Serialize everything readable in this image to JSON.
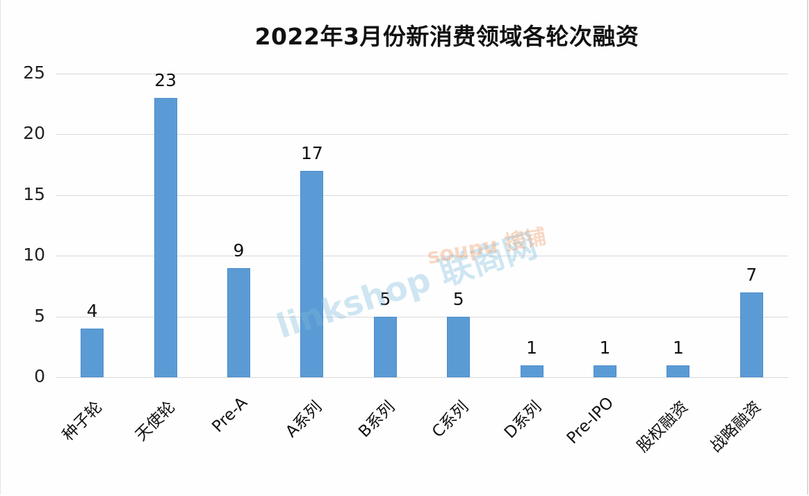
{
  "chart_data": {
    "type": "bar",
    "title": "2022年3月份新消费领域各轮次融资",
    "categories": [
      "种子轮",
      "天使轮",
      "Pre-A",
      "A系列",
      "B系列",
      "C系列",
      "D系列",
      "Pre-IPO",
      "股权融资",
      "战略融资"
    ],
    "values": [
      4,
      23,
      9,
      17,
      5,
      5,
      1,
      1,
      1,
      7
    ],
    "value_labels": [
      "4",
      "23",
      "9",
      "17",
      "5",
      "5",
      "1",
      "1",
      "1",
      "7"
    ],
    "xlabel": "",
    "ylabel": "",
    "ylim": [
      0,
      25
    ],
    "yticks": [
      "0",
      "5",
      "10",
      "15",
      "20",
      "25"
    ],
    "grid": true,
    "legend": "none",
    "bar_color": "#5b9bd5",
    "watermarks": [
      "linkshop 联商网",
      "soupu 搜铺"
    ]
  }
}
